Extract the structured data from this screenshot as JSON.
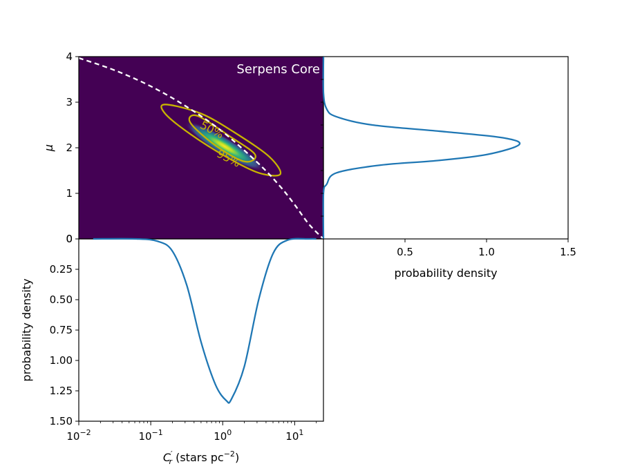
{
  "chart_data": [
    {
      "panel": "joint-posterior",
      "type": "heatmap",
      "title": "Serpens Core",
      "ylabel": "μ",
      "xlim_log10": [
        -2,
        1.4
      ],
      "ylim": [
        0,
        4
      ],
      "yticks": [
        "0",
        "1",
        "2",
        "3",
        "4"
      ],
      "peak": {
        "log10_Cr": 0.1,
        "mu": 2.05
      },
      "contour_labels": [
        "50%",
        "95%"
      ],
      "contour_50": [
        [
          -0.35,
          2.7
        ],
        [
          0.1,
          2.25
        ],
        [
          0.45,
          1.85
        ],
        [
          0.3,
          1.7
        ],
        [
          -0.1,
          2.05
        ],
        [
          -0.45,
          2.55
        ]
      ],
      "contour_95": [
        [
          -0.8,
          2.95
        ],
        [
          -0.3,
          2.75
        ],
        [
          0.2,
          2.3
        ],
        [
          0.65,
          1.8
        ],
        [
          0.8,
          1.42
        ],
        [
          0.5,
          1.45
        ],
        [
          0.05,
          1.8
        ],
        [
          -0.45,
          2.3
        ],
        [
          -0.8,
          2.75
        ]
      ],
      "constraint_curve": {
        "style": "dashed",
        "color": "#ffffff",
        "points": [
          [
            -2,
            3.97
          ],
          [
            -1.5,
            3.7
          ],
          [
            -1,
            3.35
          ],
          [
            -0.5,
            2.9
          ],
          [
            0,
            2.35
          ],
          [
            0.5,
            1.65
          ],
          [
            0.8,
            1.15
          ],
          [
            1.0,
            0.75
          ],
          [
            1.2,
            0.32
          ],
          [
            1.4,
            0
          ]
        ]
      },
      "colors": {
        "background": "#440154",
        "contour": "#c8b400",
        "curve": "#ffffff"
      }
    },
    {
      "panel": "mu-marginal",
      "type": "line",
      "xlabel": "probability density",
      "xlim": [
        0,
        1.5
      ],
      "xticks": [
        "0.5",
        "1.0",
        "1.5"
      ],
      "x_values": [
        0.0,
        0.0,
        0.02,
        0.08,
        0.35,
        0.7,
        1.0,
        1.2,
        1.1,
        0.75,
        0.3,
        0.08,
        0.02,
        0.0,
        0.0
      ],
      "y_values": [
        0.0,
        1.0,
        1.2,
        1.45,
        1.62,
        1.72,
        1.85,
        2.07,
        2.22,
        2.35,
        2.5,
        2.68,
        2.85,
        3.2,
        4.0
      ],
      "color": "#1f77b4"
    },
    {
      "panel": "Cr-marginal",
      "type": "line",
      "xlabel": "C′r (stars pc−2)",
      "ylabel": "probability density",
      "ylim": [
        0,
        1.5
      ],
      "yticks": [
        "0",
        "0.25",
        "0.50",
        "0.75",
        "1.00",
        "1.25",
        "1.50"
      ],
      "xticks": [
        {
          "base": "10",
          "exp": "−2"
        },
        {
          "base": "10",
          "exp": "−1"
        },
        {
          "base": "10",
          "exp": "0"
        },
        {
          "base": "10",
          "exp": "1"
        }
      ],
      "x_log10": [
        -1.8,
        -1.2,
        -0.9,
        -0.7,
        -0.5,
        -0.3,
        -0.1,
        0.05,
        0.12,
        0.3,
        0.5,
        0.7,
        0.9,
        1.2,
        1.3
      ],
      "y_values": [
        0.0,
        0.0,
        0.02,
        0.1,
        0.38,
        0.85,
        1.2,
        1.33,
        1.32,
        1.05,
        0.5,
        0.12,
        0.01,
        0.0,
        0.0
      ],
      "color": "#1f77b4"
    }
  ]
}
